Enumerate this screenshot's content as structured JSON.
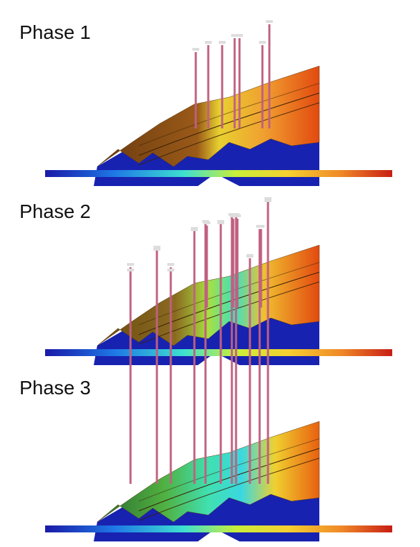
{
  "phases": [
    {
      "label": "Phase 1"
    },
    {
      "label": "Phase 2"
    },
    {
      "label": "Phase 3"
    }
  ]
}
